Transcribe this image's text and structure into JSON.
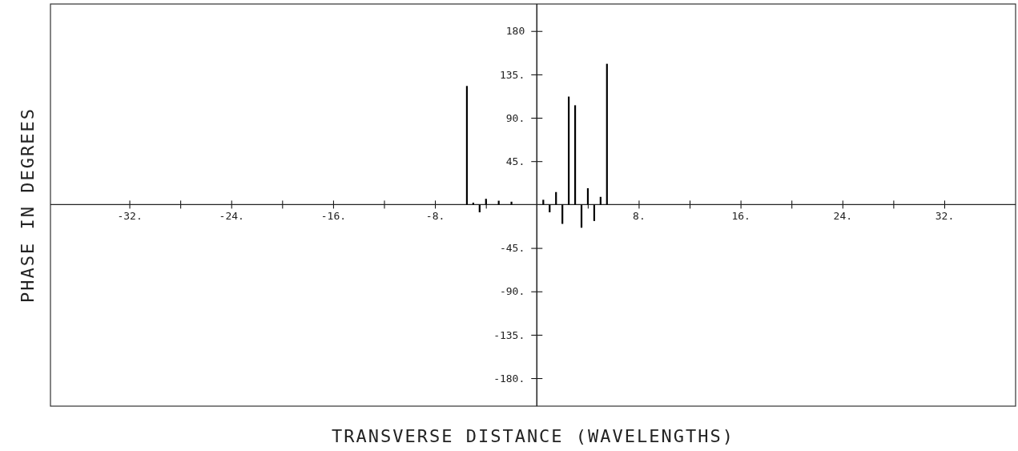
{
  "chart_data": {
    "type": "bar",
    "grid": false,
    "xlabel": "TRANSVERSE DISTANCE (WAVELENGTHS)",
    "ylabel": "PHASE IN DEGREES",
    "x": [
      -5.5,
      -5,
      -4.5,
      -4,
      -3,
      -2.5,
      -2,
      -1.5,
      -1,
      -0.5,
      0,
      0.5,
      1,
      1.5,
      2,
      2.5,
      3,
      3.5,
      4,
      4.5,
      5,
      5.5
    ],
    "series": [
      {
        "color": "#000000",
        "values": [
          123,
          2,
          -8,
          6,
          4,
          0,
          3,
          0,
          0,
          0,
          0,
          5,
          -8,
          13,
          -20,
          112,
          103,
          -24,
          17,
          -17,
          8,
          146
        ]
      }
    ],
    "xlim": [
      -38.2,
      37.6
    ],
    "ylim": [
      -209,
      208
    ],
    "xticks": [
      {
        "value": -32,
        "label": "-32."
      },
      {
        "value": -28,
        "label": null
      },
      {
        "value": -24,
        "label": "-24."
      },
      {
        "value": -20,
        "label": null
      },
      {
        "value": -16,
        "label": "-16."
      },
      {
        "value": -12,
        "label": null
      },
      {
        "value": -8,
        "label": "-8."
      },
      {
        "value": -4,
        "label": null
      },
      {
        "value": 4,
        "label": null
      },
      {
        "value": 8,
        "label": "8."
      },
      {
        "value": 12,
        "label": null
      },
      {
        "value": 16,
        "label": "16."
      },
      {
        "value": 20,
        "label": null
      },
      {
        "value": 24,
        "label": "24."
      },
      {
        "value": 28,
        "label": null
      },
      {
        "value": 32,
        "label": "32."
      }
    ],
    "yticks": [
      {
        "value": 180,
        "label": "180"
      },
      {
        "value": 135,
        "label": "135."
      },
      {
        "value": 90,
        "label": "90."
      },
      {
        "value": 45,
        "label": "45."
      },
      {
        "value": -45,
        "label": "-45."
      },
      {
        "value": -90,
        "label": "-90."
      },
      {
        "value": -135,
        "label": "-135."
      },
      {
        "value": -180,
        "label": "-180."
      }
    ]
  }
}
